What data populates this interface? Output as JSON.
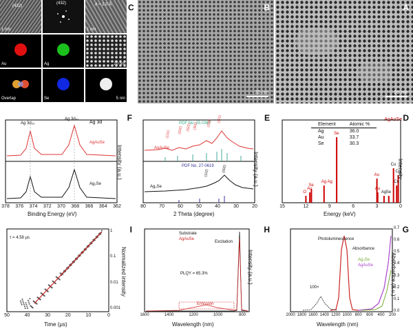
{
  "panels": {
    "A": {
      "label": "A",
      "scale": "20 nm"
    },
    "B": {
      "label": "B",
      "scale": "20 nm"
    },
    "C": {
      "label": "C",
      "tiles": {
        "hrtem_scale": "1 nm",
        "fft_label": "(432)",
        "dspacing_label": "d",
        "dspacing_value": "= 2.0 Å",
        "tile3_scale": "1 nm",
        "tile4_scale": "20 nm",
        "au": "Au",
        "ag": "Ag",
        "se": "Se",
        "overlap": "Overlap",
        "tile9_scale": "5 nm",
        "hrtem_index": "(432)"
      }
    },
    "D": {
      "label": "D",
      "sample": "AgAuSe",
      "table_headers": [
        "Element",
        "Atomic %"
      ],
      "table_rows": [
        [
          "Ag",
          "36.0"
        ],
        [
          "Au",
          "33.7"
        ],
        [
          "Se",
          "30.3"
        ]
      ],
      "xlabel": "Energy (keV)",
      "ylabel": "Intensity",
      "peaks": [
        "Cu",
        "Cu",
        "Cu",
        "Se",
        "Ag",
        "Au",
        "Au",
        "Se",
        "Ag Ag",
        "Se",
        "Au",
        "O"
      ]
    },
    "E": {
      "label": "E",
      "xlabel": "2 Theta (degree)",
      "ylabel": "Intensity (a.u.)",
      "pdf_top": "PDF No. 25-0367",
      "pdf_bottom": "PDF No. 27-0619",
      "sample_top": "AgAuSe",
      "sample_bottom": "Ag₂Se",
      "hkl_top": [
        "(131)",
        "(032)",
        "(302)",
        "(230)",
        "(321)",
        "(522)"
      ],
      "hkl_bottom": [
        "(002)",
        "(112)"
      ]
    },
    "F": {
      "label": "F",
      "title": "Ag 3d",
      "xlabel": "Binding Energy (eV)",
      "ylabel": "Intensity (a.u.)",
      "peaks": [
        "Ag 3d₃₂",
        "Ag 3d₅₂"
      ],
      "sample_top": "AgAuSe",
      "sample_bottom": "Ag₂Se"
    },
    "G": {
      "label": "G",
      "xlabel": "Wavelength (nm)",
      "ylabel_right": "Absorbance (a.u.)",
      "ylabel_left": "Normalized PL",
      "absorbance": "Absorbance",
      "pl": "Photoluminescence",
      "legend": [
        "Ag₂Se",
        "AgAuSe"
      ],
      "mult": "100×"
    },
    "H": {
      "label": "H",
      "xlabel": "Wavelength (nm)",
      "ylabel": "Intensity (a.u.)",
      "legend": [
        "Substrate",
        "AgAuSe"
      ],
      "excitation": "Excitation",
      "emission": "Emission",
      "plqy": "PLQY = 65.3%"
    },
    "I": {
      "label": "I",
      "xlabel": "Time (μs)",
      "ylabel": "Normalized intensity",
      "tau": "τ = 4.58 μs",
      "ytick_top": "1"
    }
  },
  "chart_data": [
    {
      "type": "line",
      "panel": "D",
      "title": "",
      "xlabel": "Energy (keV)",
      "ylabel": "Intensity",
      "x": [
        0.3,
        0.5,
        0.9,
        1.5,
        2.1,
        2.9,
        3.0,
        8.1,
        9.7,
        11.3,
        11.5,
        12.0
      ],
      "series": [
        {
          "name": "AgAuSe",
          "values": [
            0.4,
            0.25,
            0.5,
            0.1,
            0.1,
            0.15,
            0.35,
            0.95,
            0.25,
            0.2,
            0.15,
            0.1
          ]
        }
      ],
      "xlim": [
        0,
        15
      ],
      "x_ticks": [
        "0",
        "3",
        "6",
        "9",
        "12",
        "15"
      ]
    },
    {
      "type": "line",
      "panel": "E",
      "xlabel": "2 Theta (degree)",
      "ylabel": "Intensity (a.u.)",
      "x_ticks": [
        "20",
        "30",
        "40",
        "50",
        "60",
        "70",
        "80"
      ],
      "xlim": [
        20,
        80
      ],
      "series": [
        {
          "name": "AgAuSe",
          "peaks_deg": [
            30.9,
            32.8,
            36.5,
            38.4,
            42.0
          ]
        },
        {
          "name": "Ag₂Se",
          "peaks_deg": [
            33.4,
            37.0
          ]
        }
      ]
    },
    {
      "type": "line",
      "panel": "F",
      "xlabel": "Binding Energy (eV)",
      "ylabel": "Intensity (a.u.)",
      "x_ticks": [
        "378",
        "376",
        "374",
        "372",
        "370",
        "368",
        "366",
        "364",
        "362"
      ],
      "xlim": [
        362,
        378
      ],
      "series": [
        {
          "name": "AgAuSe",
          "peaks_eV": [
            374.1,
            368.1
          ]
        },
        {
          "name": "Ag₂Se",
          "peaks_eV": [
            373.7,
            367.7
          ]
        }
      ]
    },
    {
      "type": "line",
      "panel": "G",
      "xlabel": "Wavelength (nm)",
      "xlim": [
        200,
        2000
      ],
      "x_ticks": [
        "200",
        "400",
        "600",
        "800",
        "1000",
        "1200",
        "1400",
        "1600",
        "1800",
        "2000"
      ],
      "y_ticks": [
        "0.0",
        "0.1",
        "0.2",
        "0.3",
        "0.4",
        "0.5",
        "0.6",
        "0.7"
      ],
      "series": [
        {
          "name": "AgAuSe PL",
          "peak_nm": 980
        },
        {
          "name": "Ag₂Se PL",
          "peak_nm": 1580
        }
      ]
    },
    {
      "type": "line",
      "panel": "H",
      "xlabel": "Wavelength (nm)",
      "xlim": [
        780,
        1600
      ],
      "x_ticks": [
        "800",
        "1000",
        "1200",
        "1400",
        "1600"
      ],
      "series": [
        {
          "name": "Substrate"
        },
        {
          "name": "AgAuSe"
        }
      ]
    },
    {
      "type": "scatter",
      "panel": "I",
      "xlabel": "Time (μs)",
      "ylabel": "Normalized intensity",
      "xlim": [
        0,
        50
      ],
      "x_ticks": [
        "0",
        "10",
        "20",
        "30",
        "40",
        "50"
      ],
      "y_ticks": [
        "0.001",
        "0.01",
        "0.1",
        "1"
      ],
      "log_y": true
    }
  ]
}
